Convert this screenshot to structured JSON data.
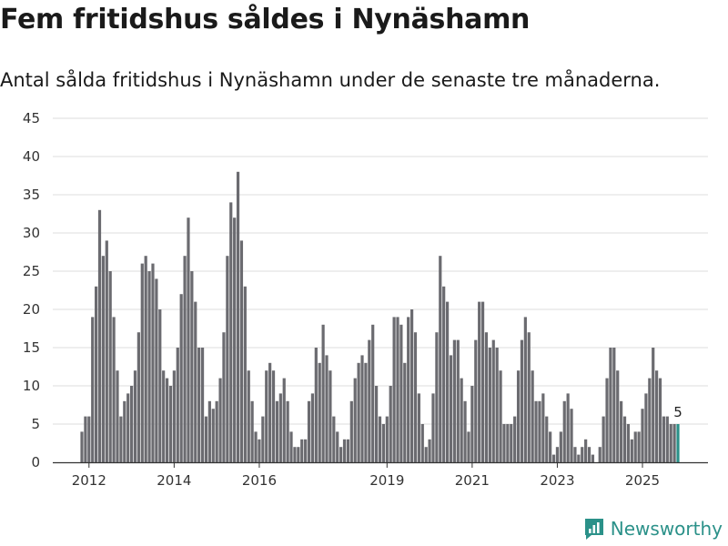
{
  "header": {
    "title": "Fem fritidshus såldes i Nynäshamn",
    "subtitle": "Antal sålda fritidshus i Nynäshamn under de senaste tre månaderna."
  },
  "brand": {
    "name": "Newsworthy",
    "icon": "newsworthy-logo-icon",
    "color": "#2b9189"
  },
  "colors": {
    "bar": "#6b6b70",
    "highlight": "#2b9189",
    "grid": "#dddddd",
    "axis": "#333333"
  },
  "chart_data": {
    "type": "bar",
    "title": "Fem fritidshus såldes i Nynäshamn",
    "subtitle": "Antal sålda fritidshus i Nynäshamn under de senaste tre månaderna.",
    "xlabel": "",
    "ylabel": "",
    "ylim": [
      0,
      45
    ],
    "yticks": [
      0,
      5,
      10,
      15,
      20,
      25,
      30,
      35,
      40,
      45
    ],
    "grid": true,
    "x_start": "2011-11",
    "x_end": "2025-11",
    "x_ticks": [
      {
        "label": "2012",
        "date": "2012-01"
      },
      {
        "label": "2014",
        "date": "2014-01"
      },
      {
        "label": "2016",
        "date": "2016-01"
      },
      {
        "label": "2019",
        "date": "2019-01"
      },
      {
        "label": "2021",
        "date": "2021-01"
      },
      {
        "label": "2023",
        "date": "2023-01"
      },
      {
        "label": "2025",
        "date": "2025-01"
      }
    ],
    "values": [
      4,
      6,
      6,
      19,
      23,
      33,
      27,
      29,
      25,
      19,
      12,
      6,
      8,
      9,
      10,
      12,
      17,
      26,
      27,
      25,
      26,
      24,
      20,
      12,
      11,
      10,
      12,
      15,
      22,
      27,
      32,
      25,
      21,
      15,
      15,
      6,
      8,
      7,
      8,
      11,
      17,
      27,
      34,
      32,
      38,
      29,
      23,
      12,
      8,
      4,
      3,
      6,
      12,
      13,
      12,
      8,
      9,
      11,
      8,
      4,
      2,
      2,
      3,
      3,
      8,
      9,
      15,
      13,
      18,
      14,
      12,
      6,
      4,
      2,
      3,
      3,
      8,
      11,
      13,
      14,
      13,
      16,
      18,
      10,
      6,
      5,
      6,
      10,
      19,
      19,
      18,
      13,
      19,
      20,
      17,
      9,
      5,
      2,
      3,
      9,
      17,
      27,
      23,
      21,
      14,
      16,
      16,
      11,
      8,
      4,
      10,
      16,
      21,
      21,
      17,
      15,
      16,
      15,
      12,
      5,
      5,
      5,
      6,
      12,
      16,
      19,
      17,
      12,
      8,
      8,
      9,
      6,
      4,
      1,
      2,
      4,
      8,
      9,
      7,
      2,
      1,
      2,
      3,
      2,
      1,
      0,
      2,
      6,
      11,
      15,
      15,
      12,
      8,
      6,
      5,
      3,
      4,
      4,
      7,
      9,
      11,
      15,
      12,
      11,
      6,
      6,
      5,
      5,
      5
    ],
    "highlight_last": true,
    "last_label": "5",
    "legend": "none"
  }
}
